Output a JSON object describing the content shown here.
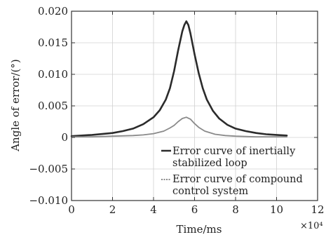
{
  "chart_data": {
    "type": "line",
    "xlabel": "Time/ms",
    "ylabel": "Angle of error/(°)",
    "x_multiplier": "×10⁴",
    "xlim": [
      0,
      12
    ],
    "ylim": [
      -0.01,
      0.02
    ],
    "xticks": [
      "0",
      "2",
      "4",
      "6",
      "8",
      "10",
      "12"
    ],
    "yticks": [
      "−0.010",
      "−0.005",
      "0",
      "0.005",
      "0.010",
      "0.015",
      "0.020"
    ],
    "legend_position": "lower-right",
    "series": [
      {
        "name": "Error curve of inertially stabilized loop",
        "color": "#2b2b2b",
        "x": [
          0,
          1,
          2,
          2.5,
          3,
          3.5,
          4,
          4.3,
          4.6,
          4.8,
          5.0,
          5.2,
          5.4,
          5.5,
          5.6,
          5.7,
          5.8,
          6.0,
          6.2,
          6.4,
          6.6,
          6.9,
          7.2,
          7.6,
          8.0,
          8.5,
          9.0,
          9.5,
          10.0,
          10.5
        ],
        "y": [
          0.0002,
          0.0004,
          0.0007,
          0.001,
          0.0014,
          0.0021,
          0.0032,
          0.0043,
          0.006,
          0.0078,
          0.0105,
          0.0138,
          0.0168,
          0.0178,
          0.0184,
          0.0178,
          0.0165,
          0.0132,
          0.0102,
          0.0078,
          0.006,
          0.0042,
          0.003,
          0.002,
          0.0014,
          0.001,
          0.0007,
          0.0005,
          0.0004,
          0.0003
        ]
      },
      {
        "name": "Error curve of compound control system",
        "color": "#8a8a8a",
        "x": [
          0,
          1,
          2,
          3,
          3.5,
          4,
          4.5,
          4.8,
          5.0,
          5.2,
          5.4,
          5.6,
          5.8,
          6.0,
          6.2,
          6.5,
          7.0,
          7.5,
          8.0,
          9.0,
          10.0,
          10.5
        ],
        "y": [
          0.0001,
          0.0001,
          0.0002,
          0.0003,
          0.0004,
          0.0006,
          0.001,
          0.0015,
          0.0019,
          0.0025,
          0.003,
          0.0032,
          0.0029,
          0.0022,
          0.0016,
          0.001,
          0.0005,
          0.0003,
          0.0002,
          0.0001,
          0.0001,
          0.0001
        ]
      }
    ]
  }
}
